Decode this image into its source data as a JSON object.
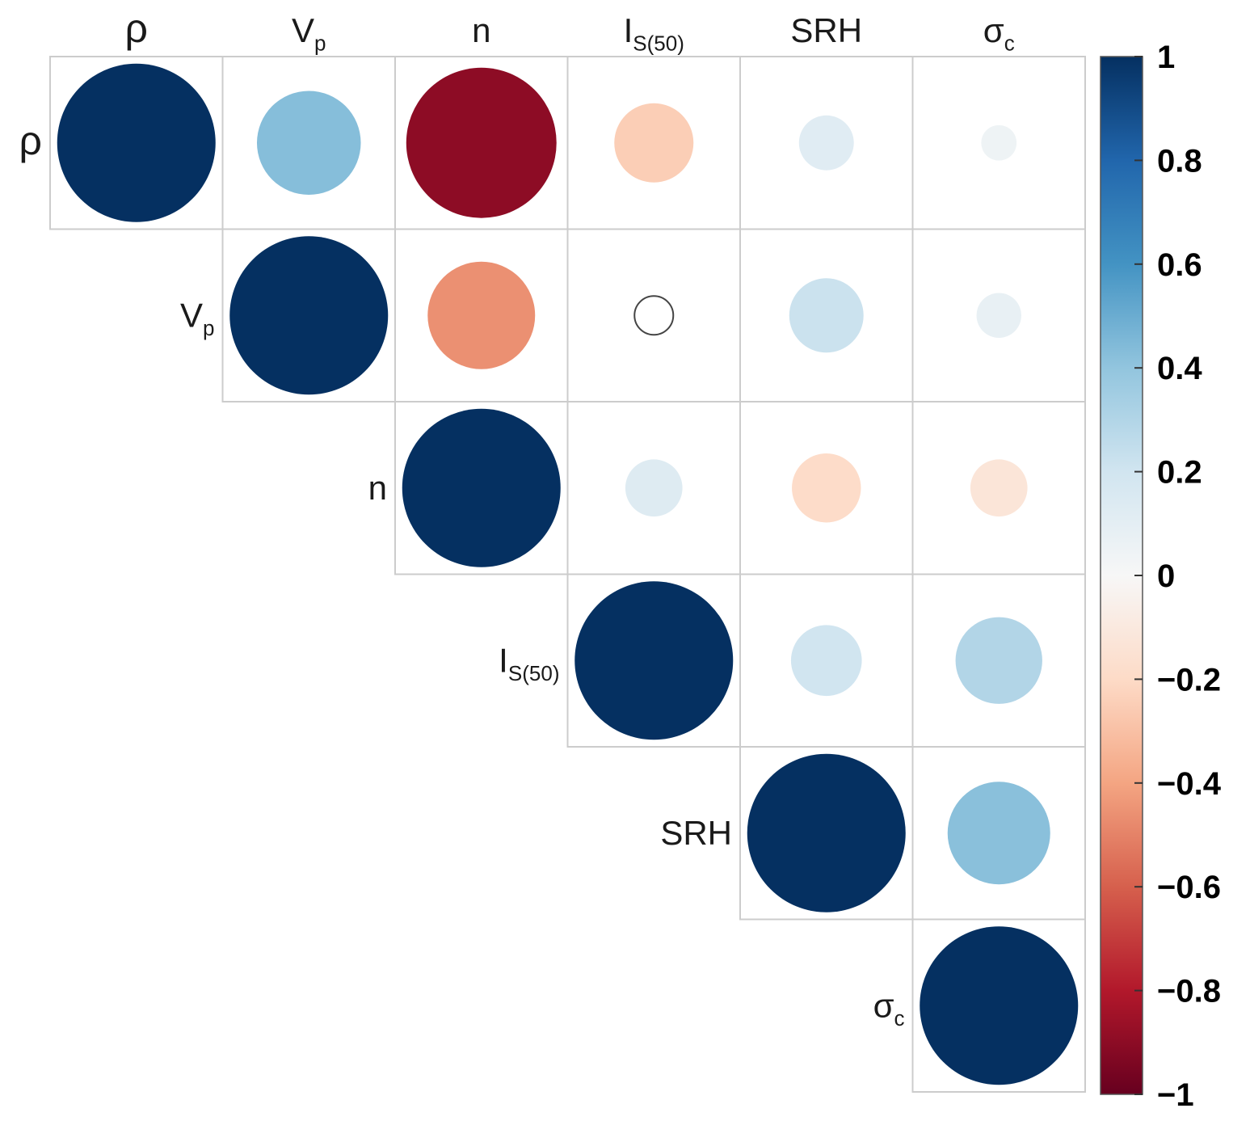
{
  "chart_data": {
    "type": "heatmap",
    "subtype": "correlation-circle-upper-triangle",
    "title": "",
    "variables": [
      {
        "name": "rho",
        "label": "ρ",
        "sub": ""
      },
      {
        "name": "vp",
        "label": "V",
        "sub": "p"
      },
      {
        "name": "n",
        "label": "n",
        "sub": ""
      },
      {
        "name": "is50",
        "label": "I",
        "sub": "S(50)"
      },
      {
        "name": "srh",
        "label": "SRH",
        "sub": ""
      },
      {
        "name": "sigma-c",
        "label": "σ",
        "sub": "c"
      }
    ],
    "matrix": [
      [
        1.0,
        0.43,
        -0.9,
        -0.25,
        0.12,
        0.05
      ],
      [
        null,
        1.0,
        -0.46,
        0.0,
        0.22,
        0.08
      ],
      [
        null,
        null,
        1.0,
        0.13,
        -0.19,
        -0.13
      ],
      [
        null,
        null,
        null,
        1.0,
        0.2,
        0.3
      ],
      [
        null,
        null,
        null,
        null,
        1.0,
        0.42
      ],
      [
        null,
        null,
        null,
        null,
        null,
        1.0
      ]
    ],
    "colorbar": {
      "range": [
        -1,
        1
      ],
      "ticks": [
        1,
        0.8,
        0.6,
        0.4,
        0.2,
        0,
        -0.2,
        -0.4,
        -0.6,
        -0.8,
        -1
      ],
      "tick_labels": [
        "1",
        "0.8",
        "0.6",
        "0.4",
        "0.2",
        "0",
        "−0.2",
        "−0.4",
        "−0.6",
        "−0.8",
        "−1"
      ],
      "colormap": "RdBu",
      "stops": [
        "#67001f",
        "#b2182b",
        "#d6604d",
        "#f4a582",
        "#fddbc7",
        "#f7f7f7",
        "#d1e5f0",
        "#92c5de",
        "#4393c3",
        "#2166ac",
        "#053061"
      ],
      "position": "right"
    },
    "grid": true
  }
}
